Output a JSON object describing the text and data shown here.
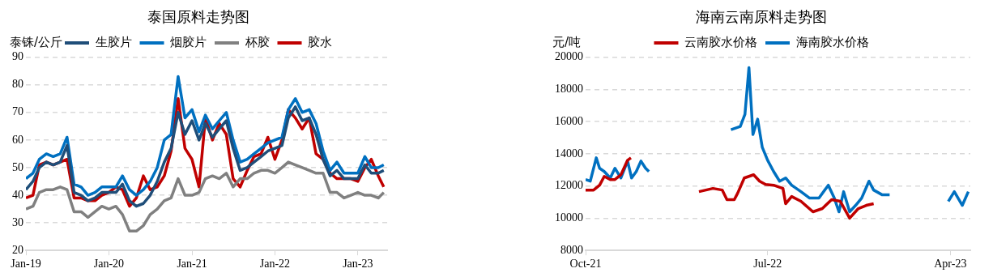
{
  "chart_data": [
    {
      "type": "line",
      "title": "泰国原料走势图",
      "ylabel": "泰铢/公斤",
      "legend": "top",
      "grid": "y",
      "marker": "none",
      "x": [
        "2019-01",
        "2019-02",
        "2019-03",
        "2019-04",
        "2019-05",
        "2019-06",
        "2019-07",
        "2019-08",
        "2019-09",
        "2019-10",
        "2019-11",
        "2019-12",
        "2020-01",
        "2020-02",
        "2020-03",
        "2020-04",
        "2020-05",
        "2020-06",
        "2020-07",
        "2020-08",
        "2020-09",
        "2020-10",
        "2020-11",
        "2020-12",
        "2021-01",
        "2021-02",
        "2021-03",
        "2021-04",
        "2021-05",
        "2021-06",
        "2021-07",
        "2021-08",
        "2021-09",
        "2021-10",
        "2021-11",
        "2021-12",
        "2022-01",
        "2022-02",
        "2022-03",
        "2022-04",
        "2022-05",
        "2022-06",
        "2022-07",
        "2022-08",
        "2022-09",
        "2022-10",
        "2022-11",
        "2022-12",
        "2023-01",
        "2023-02",
        "2023-03",
        "2023-04",
        "2023-04-25"
      ],
      "xlim": [
        "2019-01-01",
        "2023-05-10"
      ],
      "xticks": [
        {
          "value": "2019-01-01",
          "label": "Jan-19"
        },
        {
          "value": "2020-01-01",
          "label": "Jan-20"
        },
        {
          "value": "2021-01-01",
          "label": "Jan-21"
        },
        {
          "value": "2022-01-01",
          "label": "Jan-22"
        },
        {
          "value": "2023-01-01",
          "label": "Jan-23"
        }
      ],
      "ylim": [
        20,
        90
      ],
      "yticks": [
        20,
        30,
        40,
        50,
        60,
        70,
        80,
        90
      ],
      "series": [
        {
          "name": "生胶片",
          "color": "#1f4e79",
          "values": [
            42,
            45,
            50,
            52,
            51,
            52,
            58,
            41,
            40,
            38,
            39,
            41,
            41,
            41,
            44,
            38,
            36,
            37,
            40,
            45,
            52,
            57,
            70,
            62,
            67,
            60,
            66,
            61,
            64,
            67,
            57,
            49,
            50,
            52,
            54,
            56,
            57,
            58,
            68,
            72,
            67,
            68,
            62,
            53,
            47,
            49,
            46,
            46,
            46,
            51,
            48,
            48,
            49
          ]
        },
        {
          "name": "烟胶片",
          "color": "#0070c0",
          "values": [
            46,
            48,
            53,
            55,
            54,
            55,
            61,
            44,
            43,
            40,
            41,
            43,
            43,
            43,
            47,
            42,
            40,
            42,
            45,
            50,
            60,
            62,
            83,
            68,
            71,
            63,
            69,
            64,
            67,
            70,
            60,
            52,
            53,
            55,
            57,
            59,
            60,
            61,
            71,
            75,
            70,
            71,
            66,
            56,
            49,
            52,
            48,
            48,
            48,
            54,
            50,
            50,
            51
          ]
        },
        {
          "name": "杯胶",
          "color": "#808080",
          "values": [
            35,
            36,
            41,
            42,
            42,
            43,
            42,
            34,
            34,
            32,
            34,
            36,
            35,
            36,
            33,
            27,
            27,
            29,
            33,
            35,
            38,
            39,
            46,
            40,
            40,
            41,
            46,
            47,
            46,
            48,
            43,
            46,
            46,
            48,
            49,
            49,
            48,
            50,
            52,
            51,
            50,
            49,
            48,
            48,
            41,
            41,
            39,
            40,
            41,
            40,
            40,
            39,
            41
          ]
        },
        {
          "name": "胶水",
          "color": "#c00000",
          "values": [
            39,
            40,
            51,
            52,
            51,
            52,
            53,
            39,
            39,
            38,
            38,
            40,
            41,
            43,
            42,
            36,
            39,
            47,
            42,
            43,
            47,
            56,
            75,
            57,
            53,
            43,
            68,
            60,
            66,
            62,
            46,
            43,
            49,
            54,
            55,
            61,
            53,
            60,
            71,
            68,
            64,
            68,
            55,
            53,
            48,
            46,
            46,
            46,
            45,
            50,
            53,
            47,
            43
          ]
        }
      ]
    },
    {
      "type": "line",
      "title": "海南云南原料走势图",
      "ylabel": "元/吨",
      "legend": "top",
      "grid": "y",
      "marker": "none",
      "xlim": [
        "2021-10-01",
        "2023-05-01"
      ],
      "xticks": [
        {
          "value": "2021-10-01",
          "label": "Oct-21"
        },
        {
          "value": "2022-07-01",
          "label": "Jul-22"
        },
        {
          "value": "2023-04-01",
          "label": "Apr-23"
        }
      ],
      "ylim": [
        8000,
        20000
      ],
      "yticks": [
        8000,
        10000,
        12000,
        14000,
        16000,
        18000,
        20000
      ],
      "series": [
        {
          "name": "云南胶水价格",
          "color": "#c00000",
          "x": [
            "2021-10-01",
            "2021-10-13",
            "2021-10-22",
            "2021-10-29",
            "2021-11-07",
            "2021-11-14",
            "2021-11-23",
            "2021-12-03",
            "2021-12-08",
            "2022-02-01",
            "2022-03-20",
            "2022-04-10",
            "2022-04-24",
            "2022-05-01",
            "2022-05-12",
            "2022-05-17",
            "2022-05-27",
            "2022-06-10",
            "2022-06-19",
            "2022-06-28",
            "2022-07-10",
            "2022-07-24",
            "2022-07-28",
            "2022-08-06",
            "2022-08-20",
            "2022-09-07",
            "2022-09-21",
            "2022-10-05",
            "2022-10-18",
            "2022-11-01",
            "2022-11-14",
            "2022-11-26",
            "2022-12-07"
          ],
          "values": [
            11750,
            11750,
            12050,
            12600,
            12400,
            12400,
            12700,
            13600,
            13750,
            null,
            11650,
            11850,
            11750,
            11150,
            11150,
            11550,
            12500,
            12700,
            12300,
            12100,
            12050,
            11850,
            10900,
            11350,
            11050,
            10400,
            10600,
            11150,
            11050,
            10000,
            10600,
            10800,
            10900
          ]
        },
        {
          "name": "海南胶水价格",
          "color": "#0070c0",
          "x": [
            "2021-10-01",
            "2021-10-08",
            "2021-10-17",
            "2021-10-22",
            "2021-10-29",
            "2021-11-07",
            "2021-11-14",
            "2021-11-23",
            "2021-12-03",
            "2021-12-09",
            "2021-12-16",
            "2021-12-23",
            "2021-12-30",
            "2022-01-04",
            "2022-03-01",
            "2022-05-07",
            "2022-05-21",
            "2022-05-28",
            "2022-06-03",
            "2022-06-09",
            "2022-06-16",
            "2022-06-23",
            "2022-07-01",
            "2022-07-10",
            "2022-07-19",
            "2022-07-28",
            "2022-08-06",
            "2022-08-20",
            "2022-09-02",
            "2022-09-16",
            "2022-09-30",
            "2022-10-09",
            "2022-10-16",
            "2022-10-23",
            "2022-11-01",
            "2022-11-10",
            "2022-11-19",
            "2022-11-30",
            "2022-12-07",
            "2022-12-20",
            "2022-12-31",
            "2023-02-15",
            "2023-03-29",
            "2023-04-07",
            "2023-04-19",
            "2023-04-28"
          ],
          "values": [
            12400,
            12300,
            13750,
            13100,
            12900,
            12500,
            13100,
            12500,
            13550,
            12500,
            12900,
            13550,
            13100,
            12900,
            null,
            15500,
            15700,
            16450,
            19350,
            15200,
            16150,
            14400,
            13600,
            12900,
            12300,
            12500,
            12050,
            11650,
            11250,
            11250,
            12050,
            11250,
            10400,
            11650,
            10400,
            10800,
            11250,
            12300,
            11750,
            11450,
            11450,
            null,
            11050,
            11650,
            10800,
            11650
          ]
        }
      ]
    }
  ]
}
